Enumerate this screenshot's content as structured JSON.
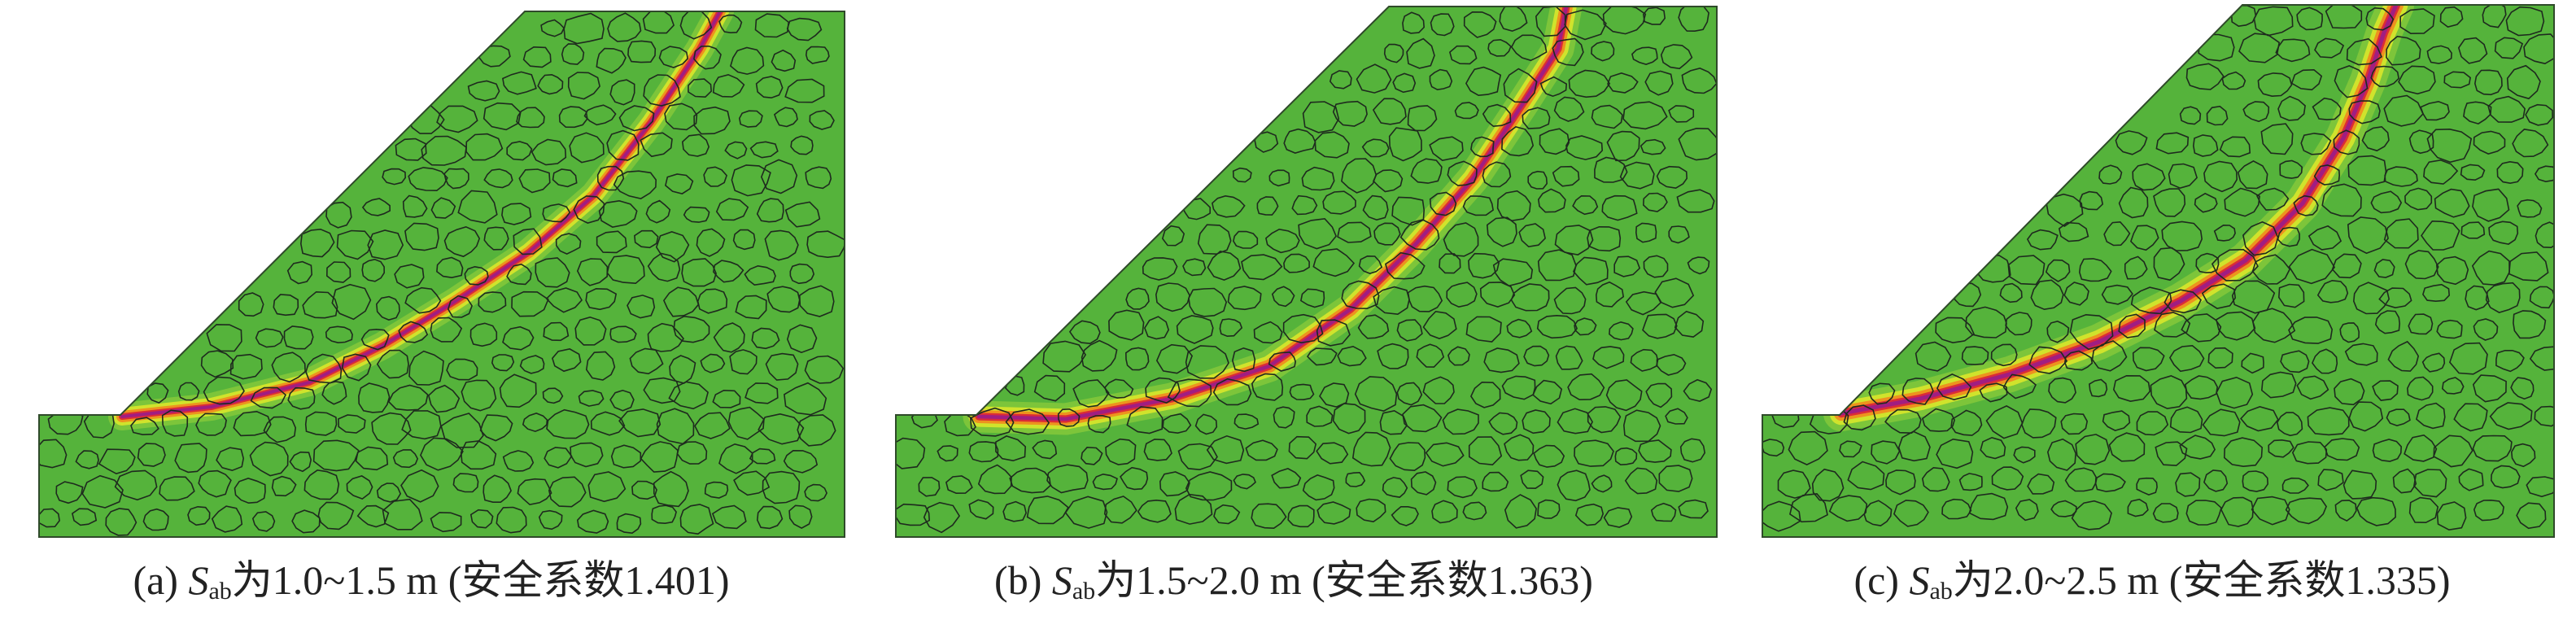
{
  "panels": [
    {
      "label": "(a)",
      "symbol": "S",
      "subscript": "ab",
      "text": "为1.0~1.5 m (安全系数1.401)",
      "factor_of_safety": 1.401,
      "band": {
        "colors": [
          "#9a1c8a",
          "#d8213a",
          "#ef8a1d",
          "#d9e52b",
          "#9fd43a"
        ]
      }
    },
    {
      "label": "(b)",
      "symbol": "S",
      "subscript": "ab",
      "text": "为1.5~2.0 m (安全系数1.363)",
      "factor_of_safety": 1.363,
      "band": {
        "colors": [
          "#9a1c8a",
          "#d8213a",
          "#ef8a1d",
          "#d9e52b",
          "#9fd43a"
        ]
      }
    },
    {
      "label": "(c)",
      "symbol": "S",
      "subscript": "ab",
      "text": "为2.0~2.5 m (安全系数1.335)",
      "factor_of_safety": 1.335,
      "band": {
        "colors": [
          "#9a1c8a",
          "#d8213a",
          "#ef8a1d",
          "#d9e52b",
          "#9fd43a"
        ]
      }
    }
  ],
  "colors": {
    "soil": "#55b33b",
    "outline": "#2f4a2a",
    "rock_outline": "#1e2a1e"
  }
}
